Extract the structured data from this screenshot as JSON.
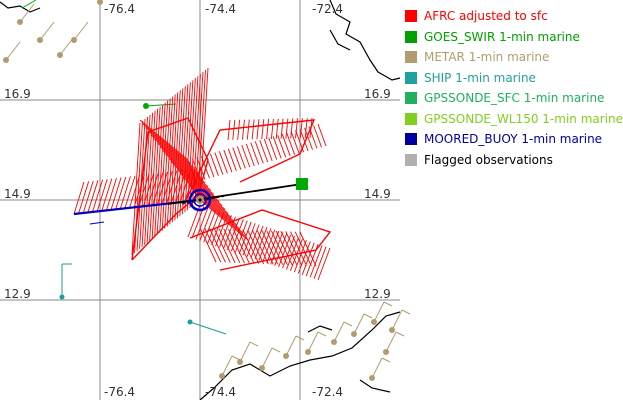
{
  "map": {
    "grid": {
      "lon_labels_top": [
        "-76.4",
        "-74.4",
        "-72.4"
      ],
      "lon_labels_bottom": [
        "-76.4",
        "-74.4",
        "-72.4"
      ],
      "lat_labels_left": [
        "16.9",
        "14.9",
        "12.9"
      ],
      "lat_labels_right": [
        "16.9",
        "14.9",
        "12.9"
      ]
    },
    "colors": {
      "grid": "#888888",
      "coast": "#000000",
      "afrc": "#ff0000",
      "goes": "#00aa00",
      "metar": "#b39b70",
      "ship": "#1a9e96",
      "buoy": "#0000c0",
      "track": "#000000"
    }
  },
  "legend": {
    "items": [
      {
        "label": "AFRC adjusted to sfc",
        "color": "#ff0000"
      },
      {
        "label": "GOES_SWIR 1-min marine",
        "color": "#00a000"
      },
      {
        "label": "METAR 1-min marine",
        "color": "#b39b70"
      },
      {
        "label": "SHIP 1-min marine",
        "color": "#20a0a0"
      },
      {
        "label": "GPSSONDE_SFC 1-min marine",
        "color": "#20b060"
      },
      {
        "label": "GPSSONDE_WL150 1-min marine",
        "color": "#80d020"
      },
      {
        "label": "MOORED_BUOY 1-min marine",
        "color": "#0000a0"
      },
      {
        "label": "Flagged observations",
        "color": "#b0b0b0"
      }
    ]
  }
}
